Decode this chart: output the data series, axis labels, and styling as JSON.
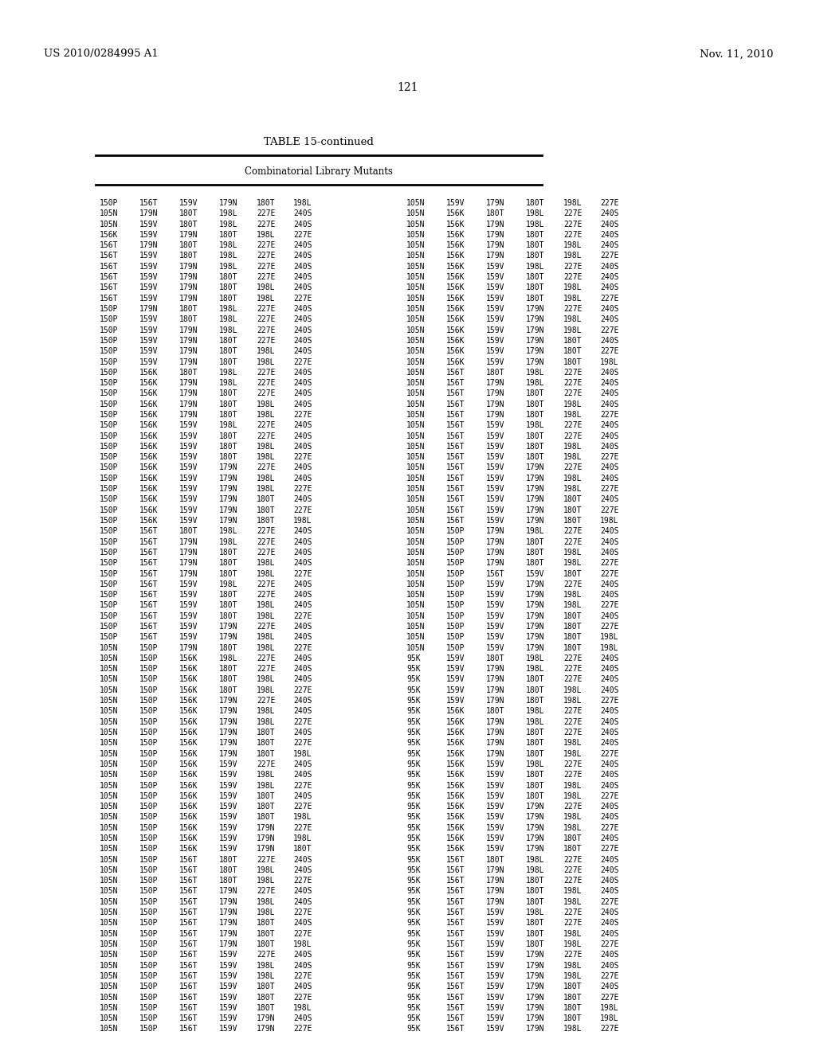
{
  "patent_left": "US 2010/0284995 A1",
  "patent_right": "Nov. 11, 2010",
  "page_number": "121",
  "table_title": "TABLE 15-continued",
  "table_subtitle": "Combinatorial Library Mutants",
  "background_color": "#ffffff",
  "text_color": "#000000",
  "rows": [
    [
      "150P",
      "156T",
      "159V",
      "179N",
      "180T",
      "198L",
      "105N",
      "159V",
      "179N",
      "180T",
      "198L",
      "227E"
    ],
    [
      "105N",
      "179N",
      "180T",
      "198L",
      "227E",
      "240S",
      "105N",
      "156K",
      "180T",
      "198L",
      "227E",
      "240S"
    ],
    [
      "105N",
      "159V",
      "180T",
      "198L",
      "227E",
      "240S",
      "105N",
      "156K",
      "179N",
      "198L",
      "227E",
      "240S"
    ],
    [
      "156K",
      "159V",
      "179N",
      "180T",
      "198L",
      "227E",
      "105N",
      "156K",
      "179N",
      "180T",
      "227E",
      "240S"
    ],
    [
      "156T",
      "179N",
      "180T",
      "198L",
      "227E",
      "240S",
      "105N",
      "156K",
      "179N",
      "180T",
      "198L",
      "240S"
    ],
    [
      "156T",
      "159V",
      "180T",
      "198L",
      "227E",
      "240S",
      "105N",
      "156K",
      "179N",
      "180T",
      "198L",
      "227E"
    ],
    [
      "156T",
      "159V",
      "179N",
      "198L",
      "227E",
      "240S",
      "105N",
      "156K",
      "159V",
      "198L",
      "227E",
      "240S"
    ],
    [
      "156T",
      "159V",
      "179N",
      "180T",
      "227E",
      "240S",
      "105N",
      "156K",
      "159V",
      "180T",
      "227E",
      "240S"
    ],
    [
      "156T",
      "159V",
      "179N",
      "180T",
      "198L",
      "240S",
      "105N",
      "156K",
      "159V",
      "180T",
      "198L",
      "240S"
    ],
    [
      "156T",
      "159V",
      "179N",
      "180T",
      "198L",
      "227E",
      "105N",
      "156K",
      "159V",
      "180T",
      "198L",
      "227E"
    ],
    [
      "150P",
      "179N",
      "180T",
      "198L",
      "227E",
      "240S",
      "105N",
      "156K",
      "159V",
      "179N",
      "227E",
      "240S"
    ],
    [
      "150P",
      "159V",
      "180T",
      "198L",
      "227E",
      "240S",
      "105N",
      "156K",
      "159V",
      "179N",
      "198L",
      "240S"
    ],
    [
      "150P",
      "159V",
      "179N",
      "198L",
      "227E",
      "240S",
      "105N",
      "156K",
      "159V",
      "179N",
      "198L",
      "227E"
    ],
    [
      "150P",
      "159V",
      "179N",
      "180T",
      "227E",
      "240S",
      "105N",
      "156K",
      "159V",
      "179N",
      "180T",
      "240S"
    ],
    [
      "150P",
      "159V",
      "179N",
      "180T",
      "198L",
      "240S",
      "105N",
      "156K",
      "159V",
      "179N",
      "180T",
      "227E"
    ],
    [
      "150P",
      "159V",
      "179N",
      "180T",
      "198L",
      "227E",
      "105N",
      "156K",
      "159V",
      "179N",
      "180T",
      "198L"
    ],
    [
      "150P",
      "156K",
      "180T",
      "198L",
      "227E",
      "240S",
      "105N",
      "156T",
      "180T",
      "198L",
      "227E",
      "240S"
    ],
    [
      "150P",
      "156K",
      "179N",
      "198L",
      "227E",
      "240S",
      "105N",
      "156T",
      "179N",
      "198L",
      "227E",
      "240S"
    ],
    [
      "150P",
      "156K",
      "179N",
      "180T",
      "227E",
      "240S",
      "105N",
      "156T",
      "179N",
      "180T",
      "227E",
      "240S"
    ],
    [
      "150P",
      "156K",
      "179N",
      "180T",
      "198L",
      "240S",
      "105N",
      "156T",
      "179N",
      "180T",
      "198L",
      "240S"
    ],
    [
      "150P",
      "156K",
      "179N",
      "180T",
      "198L",
      "227E",
      "105N",
      "156T",
      "179N",
      "180T",
      "198L",
      "227E"
    ],
    [
      "150P",
      "156K",
      "159V",
      "198L",
      "227E",
      "240S",
      "105N",
      "156T",
      "159V",
      "198L",
      "227E",
      "240S"
    ],
    [
      "150P",
      "156K",
      "159V",
      "180T",
      "227E",
      "240S",
      "105N",
      "156T",
      "159V",
      "180T",
      "227E",
      "240S"
    ],
    [
      "150P",
      "156K",
      "159V",
      "180T",
      "198L",
      "240S",
      "105N",
      "156T",
      "159V",
      "180T",
      "198L",
      "240S"
    ],
    [
      "150P",
      "156K",
      "159V",
      "180T",
      "198L",
      "227E",
      "105N",
      "156T",
      "159V",
      "180T",
      "198L",
      "227E"
    ],
    [
      "150P",
      "156K",
      "159V",
      "179N",
      "227E",
      "240S",
      "105N",
      "156T",
      "159V",
      "179N",
      "227E",
      "240S"
    ],
    [
      "150P",
      "156K",
      "159V",
      "179N",
      "198L",
      "240S",
      "105N",
      "156T",
      "159V",
      "179N",
      "198L",
      "240S"
    ],
    [
      "150P",
      "156K",
      "159V",
      "179N",
      "198L",
      "227E",
      "105N",
      "156T",
      "159V",
      "179N",
      "198L",
      "227E"
    ],
    [
      "150P",
      "156K",
      "159V",
      "179N",
      "180T",
      "240S",
      "105N",
      "156T",
      "159V",
      "179N",
      "180T",
      "240S"
    ],
    [
      "150P",
      "156K",
      "159V",
      "179N",
      "180T",
      "227E",
      "105N",
      "156T",
      "159V",
      "179N",
      "180T",
      "227E"
    ],
    [
      "150P",
      "156K",
      "159V",
      "179N",
      "180T",
      "198L",
      "105N",
      "156T",
      "159V",
      "179N",
      "180T",
      "198L"
    ],
    [
      "150P",
      "156T",
      "180T",
      "198L",
      "227E",
      "240S",
      "105N",
      "150P",
      "179N",
      "198L",
      "227E",
      "240S"
    ],
    [
      "150P",
      "156T",
      "179N",
      "198L",
      "227E",
      "240S",
      "105N",
      "150P",
      "179N",
      "180T",
      "227E",
      "240S"
    ],
    [
      "150P",
      "156T",
      "179N",
      "180T",
      "227E",
      "240S",
      "105N",
      "150P",
      "179N",
      "180T",
      "198L",
      "240S"
    ],
    [
      "150P",
      "156T",
      "179N",
      "180T",
      "198L",
      "240S",
      "105N",
      "150P",
      "179N",
      "180T",
      "198L",
      "227E"
    ],
    [
      "150P",
      "156T",
      "179N",
      "180T",
      "198L",
      "227E",
      "105N",
      "150P",
      "156T",
      "159V",
      "180T",
      "227E"
    ],
    [
      "150P",
      "156T",
      "159V",
      "198L",
      "227E",
      "240S",
      "105N",
      "150P",
      "159V",
      "179N",
      "227E",
      "240S"
    ],
    [
      "150P",
      "156T",
      "159V",
      "180T",
      "227E",
      "240S",
      "105N",
      "150P",
      "159V",
      "179N",
      "198L",
      "240S"
    ],
    [
      "150P",
      "156T",
      "159V",
      "180T",
      "198L",
      "240S",
      "105N",
      "150P",
      "159V",
      "179N",
      "198L",
      "227E"
    ],
    [
      "150P",
      "156T",
      "159V",
      "180T",
      "198L",
      "227E",
      "105N",
      "150P",
      "159V",
      "179N",
      "180T",
      "240S"
    ],
    [
      "150P",
      "156T",
      "159V",
      "179N",
      "227E",
      "240S",
      "105N",
      "150P",
      "159V",
      "179N",
      "180T",
      "227E"
    ],
    [
      "150P",
      "156T",
      "159V",
      "179N",
      "198L",
      "240S",
      "105N",
      "150P",
      "159V",
      "179N",
      "180T",
      "198L"
    ],
    [
      "105N",
      "150P",
      "179N",
      "180T",
      "198L",
      "227E",
      "105N",
      "150P",
      "159V",
      "179N",
      "180T",
      "198L"
    ],
    [
      "105N",
      "150P",
      "156K",
      "198L",
      "227E",
      "240S",
      "95K",
      "159V",
      "180T",
      "198L",
      "227E",
      "240S"
    ],
    [
      "105N",
      "150P",
      "156K",
      "180T",
      "227E",
      "240S",
      "95K",
      "159V",
      "179N",
      "198L",
      "227E",
      "240S"
    ],
    [
      "105N",
      "150P",
      "156K",
      "180T",
      "198L",
      "240S",
      "95K",
      "159V",
      "179N",
      "180T",
      "227E",
      "240S"
    ],
    [
      "105N",
      "150P",
      "156K",
      "180T",
      "198L",
      "227E",
      "95K",
      "159V",
      "179N",
      "180T",
      "198L",
      "240S"
    ],
    [
      "105N",
      "150P",
      "156K",
      "179N",
      "227E",
      "240S",
      "95K",
      "159V",
      "179N",
      "180T",
      "198L",
      "227E"
    ],
    [
      "105N",
      "150P",
      "156K",
      "179N",
      "198L",
      "240S",
      "95K",
      "156K",
      "180T",
      "198L",
      "227E",
      "240S"
    ],
    [
      "105N",
      "150P",
      "156K",
      "179N",
      "198L",
      "227E",
      "95K",
      "156K",
      "179N",
      "198L",
      "227E",
      "240S"
    ],
    [
      "105N",
      "150P",
      "156K",
      "179N",
      "180T",
      "240S",
      "95K",
      "156K",
      "179N",
      "180T",
      "227E",
      "240S"
    ],
    [
      "105N",
      "150P",
      "156K",
      "179N",
      "180T",
      "227E",
      "95K",
      "156K",
      "179N",
      "180T",
      "198L",
      "240S"
    ],
    [
      "105N",
      "150P",
      "156K",
      "179N",
      "180T",
      "198L",
      "95K",
      "156K",
      "179N",
      "180T",
      "198L",
      "227E"
    ],
    [
      "105N",
      "150P",
      "156K",
      "159V",
      "227E",
      "240S",
      "95K",
      "156K",
      "159V",
      "198L",
      "227E",
      "240S"
    ],
    [
      "105N",
      "150P",
      "156K",
      "159V",
      "198L",
      "240S",
      "95K",
      "156K",
      "159V",
      "180T",
      "227E",
      "240S"
    ],
    [
      "105N",
      "150P",
      "156K",
      "159V",
      "198L",
      "227E",
      "95K",
      "156K",
      "159V",
      "180T",
      "198L",
      "240S"
    ],
    [
      "105N",
      "150P",
      "156K",
      "159V",
      "180T",
      "240S",
      "95K",
      "156K",
      "159V",
      "180T",
      "198L",
      "227E"
    ],
    [
      "105N",
      "150P",
      "156K",
      "159V",
      "180T",
      "227E",
      "95K",
      "156K",
      "159V",
      "179N",
      "227E",
      "240S"
    ],
    [
      "105N",
      "150P",
      "156K",
      "159V",
      "180T",
      "198L",
      "95K",
      "156K",
      "159V",
      "179N",
      "198L",
      "240S"
    ],
    [
      "105N",
      "150P",
      "156K",
      "159V",
      "179N",
      "227E",
      "95K",
      "156K",
      "159V",
      "179N",
      "198L",
      "227E"
    ],
    [
      "105N",
      "150P",
      "156K",
      "159V",
      "179N",
      "198L",
      "95K",
      "156K",
      "159V",
      "179N",
      "180T",
      "240S"
    ],
    [
      "105N",
      "150P",
      "156K",
      "159V",
      "179N",
      "180T",
      "95K",
      "156K",
      "159V",
      "179N",
      "180T",
      "227E"
    ],
    [
      "105N",
      "150P",
      "156T",
      "180T",
      "227E",
      "240S",
      "95K",
      "156T",
      "180T",
      "198L",
      "227E",
      "240S"
    ],
    [
      "105N",
      "150P",
      "156T",
      "180T",
      "198L",
      "240S",
      "95K",
      "156T",
      "179N",
      "198L",
      "227E",
      "240S"
    ],
    [
      "105N",
      "150P",
      "156T",
      "180T",
      "198L",
      "227E",
      "95K",
      "156T",
      "179N",
      "180T",
      "227E",
      "240S"
    ],
    [
      "105N",
      "150P",
      "156T",
      "179N",
      "227E",
      "240S",
      "95K",
      "156T",
      "179N",
      "180T",
      "198L",
      "240S"
    ],
    [
      "105N",
      "150P",
      "156T",
      "179N",
      "198L",
      "240S",
      "95K",
      "156T",
      "179N",
      "180T",
      "198L",
      "227E"
    ],
    [
      "105N",
      "150P",
      "156T",
      "179N",
      "198L",
      "227E",
      "95K",
      "156T",
      "159V",
      "198L",
      "227E",
      "240S"
    ],
    [
      "105N",
      "150P",
      "156T",
      "179N",
      "180T",
      "240S",
      "95K",
      "156T",
      "159V",
      "180T",
      "227E",
      "240S"
    ],
    [
      "105N",
      "150P",
      "156T",
      "179N",
      "180T",
      "227E",
      "95K",
      "156T",
      "159V",
      "180T",
      "198L",
      "240S"
    ],
    [
      "105N",
      "150P",
      "156T",
      "179N",
      "180T",
      "198L",
      "95K",
      "156T",
      "159V",
      "180T",
      "198L",
      "227E"
    ],
    [
      "105N",
      "150P",
      "156T",
      "159V",
      "227E",
      "240S",
      "95K",
      "156T",
      "159V",
      "179N",
      "227E",
      "240S"
    ],
    [
      "105N",
      "150P",
      "156T",
      "159V",
      "198L",
      "240S",
      "95K",
      "156T",
      "159V",
      "179N",
      "198L",
      "240S"
    ],
    [
      "105N",
      "150P",
      "156T",
      "159V",
      "198L",
      "227E",
      "95K",
      "156T",
      "159V",
      "179N",
      "198L",
      "227E"
    ],
    [
      "105N",
      "150P",
      "156T",
      "159V",
      "180T",
      "240S",
      "95K",
      "156T",
      "159V",
      "179N",
      "180T",
      "240S"
    ],
    [
      "105N",
      "150P",
      "156T",
      "159V",
      "180T",
      "227E",
      "95K",
      "156T",
      "159V",
      "179N",
      "180T",
      "227E"
    ],
    [
      "105N",
      "150P",
      "156T",
      "159V",
      "180T",
      "198L",
      "95K",
      "156T",
      "159V",
      "179N",
      "180T",
      "198L"
    ],
    [
      "105N",
      "150P",
      "156T",
      "159V",
      "179N",
      "240S",
      "95K",
      "156T",
      "159V",
      "179N",
      "180T",
      "198L"
    ],
    [
      "105N",
      "150P",
      "156T",
      "159V",
      "179N",
      "227E",
      "95K",
      "156T",
      "159V",
      "179N",
      "198L",
      "227E"
    ]
  ]
}
